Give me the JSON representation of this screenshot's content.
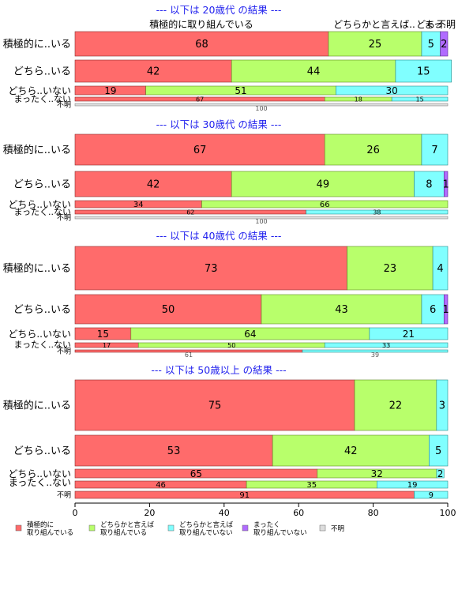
{
  "chart_data": {
    "type": "bar",
    "stacked": "horizontal-100-percent",
    "xlim": [
      0,
      100
    ],
    "xticks": [
      0,
      20,
      40,
      60,
      80,
      100
    ],
    "column_headers": [
      "積極的に取り組んでいる",
      "どちらかと言えば..",
      "どち..",
      "まっ..",
      "不明"
    ],
    "legend": {
      "placement": "bottom",
      "entries": [
        {
          "label": "積極的に\n取り組んでいる",
          "color": "#ff6b6b"
        },
        {
          "label": "どちらかと言えば\n取り組んでいる",
          "color": "#b8ff6b"
        },
        {
          "label": "どちらかと言えば\n取り組んでいない",
          "color": "#80ffff"
        },
        {
          "label": "まったく\n取り組んでいない",
          "color": "#b06bff"
        },
        {
          "label": "不明",
          "color": "#dddddd"
        }
      ]
    },
    "panels": [
      {
        "title": "--- 以下は 20歳代 の結果 ---",
        "rows": [
          {
            "label": "積極的に..いる",
            "segments": [
              {
                "value": 68,
                "shown": "68"
              },
              {
                "value": 25,
                "shown": "25"
              },
              {
                "value": 5,
                "shown": "5"
              },
              {
                "value": 2,
                "shown": "2"
              },
              {
                "value": 0,
                "shown": ""
              }
            ]
          },
          {
            "label": "どちら..いる",
            "segments": [
              {
                "value": 42,
                "shown": "42"
              },
              {
                "value": 44,
                "shown": "44"
              },
              {
                "value": 15,
                "shown": "15"
              },
              {
                "value": 0,
                "shown": ""
              },
              {
                "value": 0,
                "shown": ""
              }
            ]
          },
          {
            "label": "どちら..いない",
            "segments": [
              {
                "value": 19,
                "shown": "19"
              },
              {
                "value": 51,
                "shown": "51"
              },
              {
                "value": 30,
                "shown": "30"
              },
              {
                "value": 0,
                "shown": ""
              },
              {
                "value": 0,
                "shown": ""
              }
            ]
          },
          {
            "label": "まったく..ない",
            "segments": [
              {
                "value": 67,
                "shown": "67"
              },
              {
                "value": 18,
                "shown": "18"
              },
              {
                "value": 15,
                "shown": "15"
              },
              {
                "value": 0,
                "shown": ""
              },
              {
                "value": 0,
                "shown": ""
              }
            ]
          },
          {
            "label": "不明",
            "segments": [
              {
                "value": 0,
                "shown": ""
              },
              {
                "value": 0,
                "shown": ""
              },
              {
                "value": 0,
                "shown": ""
              },
              {
                "value": 0,
                "shown": ""
              },
              {
                "value": 100,
                "shown": "100"
              }
            ]
          }
        ]
      },
      {
        "title": "--- 以下は 30歳代 の結果 ---",
        "rows": [
          {
            "label": "積極的に..いる",
            "segments": [
              {
                "value": 67,
                "shown": "67"
              },
              {
                "value": 26,
                "shown": "26"
              },
              {
                "value": 7,
                "shown": "7"
              },
              {
                "value": 0,
                "shown": ""
              },
              {
                "value": 0,
                "shown": ""
              }
            ]
          },
          {
            "label": "どちら..いる",
            "segments": [
              {
                "value": 42,
                "shown": "42"
              },
              {
                "value": 49,
                "shown": "49"
              },
              {
                "value": 8,
                "shown": "8"
              },
              {
                "value": 1,
                "shown": "1"
              },
              {
                "value": 0,
                "shown": ""
              }
            ]
          },
          {
            "label": "どちら..いない",
            "segments": [
              {
                "value": 34,
                "shown": "34"
              },
              {
                "value": 66,
                "shown": "66"
              },
              {
                "value": 0,
                "shown": ""
              },
              {
                "value": 0,
                "shown": ""
              },
              {
                "value": 0,
                "shown": ""
              }
            ]
          },
          {
            "label": "まったく..ない",
            "segments": [
              {
                "value": 62,
                "shown": "62"
              },
              {
                "value": 0,
                "shown": ""
              },
              {
                "value": 38,
                "shown": "38"
              },
              {
                "value": 0,
                "shown": ""
              },
              {
                "value": 0,
                "shown": ""
              }
            ]
          },
          {
            "label": "不明",
            "segments": [
              {
                "value": 0,
                "shown": ""
              },
              {
                "value": 0,
                "shown": ""
              },
              {
                "value": 0,
                "shown": ""
              },
              {
                "value": 0,
                "shown": ""
              },
              {
                "value": 100,
                "shown": "100"
              }
            ]
          }
        ]
      },
      {
        "title": "--- 以下は 40歳代 の結果 ---",
        "rows": [
          {
            "label": "積極的に..いる",
            "segments": [
              {
                "value": 73,
                "shown": "73"
              },
              {
                "value": 23,
                "shown": "23"
              },
              {
                "value": 4,
                "shown": "4"
              },
              {
                "value": 0,
                "shown": ""
              },
              {
                "value": 0,
                "shown": ""
              }
            ]
          },
          {
            "label": "どちら..いる",
            "segments": [
              {
                "value": 50,
                "shown": "50"
              },
              {
                "value": 43,
                "shown": "43"
              },
              {
                "value": 6,
                "shown": "6"
              },
              {
                "value": 1,
                "shown": "1"
              },
              {
                "value": 0,
                "shown": ""
              }
            ]
          },
          {
            "label": "どちら..いない",
            "segments": [
              {
                "value": 15,
                "shown": "15"
              },
              {
                "value": 64,
                "shown": "64"
              },
              {
                "value": 21,
                "shown": "21"
              },
              {
                "value": 0,
                "shown": ""
              },
              {
                "value": 0,
                "shown": ""
              }
            ]
          },
          {
            "label": "まったく..ない",
            "segments": [
              {
                "value": 17,
                "shown": "17"
              },
              {
                "value": 50,
                "shown": "50"
              },
              {
                "value": 33,
                "shown": "33"
              },
              {
                "value": 0,
                "shown": ""
              },
              {
                "value": 0,
                "shown": ""
              }
            ]
          },
          {
            "label": "不明",
            "segments": [
              {
                "value": 61,
                "shown": "61"
              },
              {
                "value": 0,
                "shown": ""
              },
              {
                "value": 39,
                "shown": "39"
              },
              {
                "value": 0,
                "shown": ""
              },
              {
                "value": 0,
                "shown": ""
              }
            ]
          }
        ]
      },
      {
        "title": "--- 以下は 50歳以上 の結果 ---",
        "rows": [
          {
            "label": "積極的に..いる",
            "segments": [
              {
                "value": 75,
                "shown": "75"
              },
              {
                "value": 22,
                "shown": "22"
              },
              {
                "value": 3,
                "shown": "3"
              },
              {
                "value": 0,
                "shown": ""
              },
              {
                "value": 0,
                "shown": ""
              }
            ]
          },
          {
            "label": "どちら..いる",
            "segments": [
              {
                "value": 53,
                "shown": "53"
              },
              {
                "value": 42,
                "shown": "42"
              },
              {
                "value": 5,
                "shown": "5"
              },
              {
                "value": 0,
                "shown": ""
              },
              {
                "value": 0,
                "shown": ""
              }
            ]
          },
          {
            "label": "どちら..いない",
            "segments": [
              {
                "value": 65,
                "shown": "65"
              },
              {
                "value": 32,
                "shown": "32"
              },
              {
                "value": 2,
                "shown": "2"
              },
              {
                "value": 0,
                "shown": ""
              },
              {
                "value": 0,
                "shown": ""
              }
            ]
          },
          {
            "label": "まったく..ない",
            "segments": [
              {
                "value": 46,
                "shown": "46"
              },
              {
                "value": 35,
                "shown": "35"
              },
              {
                "value": 19,
                "shown": "19"
              },
              {
                "value": 0,
                "shown": ""
              },
              {
                "value": 0,
                "shown": ""
              }
            ]
          },
          {
            "label": "不明",
            "segments": [
              {
                "value": 91,
                "shown": "91"
              },
              {
                "value": 0,
                "shown": ""
              },
              {
                "value": 9,
                "shown": "9"
              },
              {
                "value": 0,
                "shown": ""
              },
              {
                "value": 0,
                "shown": ""
              }
            ]
          }
        ]
      }
    ]
  }
}
